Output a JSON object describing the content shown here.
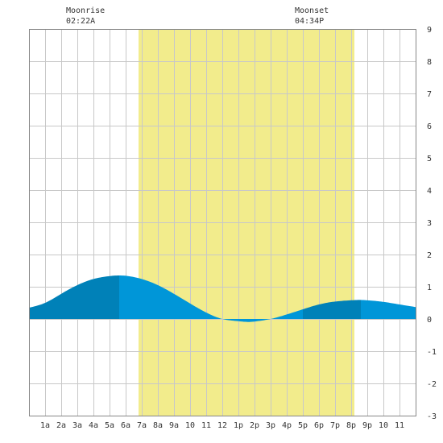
{
  "moon": {
    "rise_label": "Moonrise",
    "rise_time": "02:22A",
    "set_label": "Moonset",
    "set_time": "04:34P"
  },
  "chart_data": {
    "type": "area",
    "x_unit": "hours after midnight",
    "xlim": [
      -1,
      23
    ],
    "ylim": [
      -3,
      9
    ],
    "x_ticks": [
      {
        "x": 0,
        "label": "1a"
      },
      {
        "x": 1,
        "label": "2a"
      },
      {
        "x": 2,
        "label": "3a"
      },
      {
        "x": 3,
        "label": "4a"
      },
      {
        "x": 4,
        "label": "5a"
      },
      {
        "x": 5,
        "label": "6a"
      },
      {
        "x": 6,
        "label": "7a"
      },
      {
        "x": 7,
        "label": "8a"
      },
      {
        "x": 8,
        "label": "9a"
      },
      {
        "x": 9,
        "label": "10"
      },
      {
        "x": 10,
        "label": "11"
      },
      {
        "x": 11,
        "label": "12"
      },
      {
        "x": 12,
        "label": "1p"
      },
      {
        "x": 13,
        "label": "2p"
      },
      {
        "x": 14,
        "label": "3p"
      },
      {
        "x": 15,
        "label": "4p"
      },
      {
        "x": 16,
        "label": "5p"
      },
      {
        "x": 17,
        "label": "6p"
      },
      {
        "x": 18,
        "label": "7p"
      },
      {
        "x": 19,
        "label": "8p"
      },
      {
        "x": 20,
        "label": "9p"
      },
      {
        "x": 21,
        "label": "10"
      },
      {
        "x": 22,
        "label": "11"
      }
    ],
    "y_ticks": [
      {
        "y": 9,
        "label": "9"
      },
      {
        "y": 8,
        "label": "8"
      },
      {
        "y": 7,
        "label": "7"
      },
      {
        "y": 6,
        "label": "6"
      },
      {
        "y": 5,
        "label": "5"
      },
      {
        "y": 4,
        "label": "4"
      },
      {
        "y": 3,
        "label": "3"
      },
      {
        "y": 2,
        "label": "2"
      },
      {
        "y": 1,
        "label": "1"
      },
      {
        "y": 0,
        "label": "0"
      },
      {
        "y": -1,
        "label": "-1"
      },
      {
        "y": -2,
        "label": "-2"
      },
      {
        "y": -3,
        "label": "-3"
      }
    ],
    "daylight": {
      "start": 5.8,
      "end": 19.2
    },
    "tide": {
      "x": [
        -1,
        0,
        1,
        2,
        3,
        4,
        4.6,
        5,
        6,
        7,
        8,
        9,
        10,
        11,
        12,
        12.8,
        13,
        14,
        15,
        16,
        17,
        18,
        19,
        19.6,
        20,
        21,
        22,
        23
      ],
      "y": [
        0.35,
        0.5,
        0.78,
        1.05,
        1.24,
        1.33,
        1.35,
        1.34,
        1.24,
        1.05,
        0.78,
        0.48,
        0.2,
        0.0,
        -0.07,
        -0.09,
        -0.08,
        0.0,
        0.14,
        0.3,
        0.45,
        0.54,
        0.58,
        0.59,
        0.58,
        0.53,
        0.45,
        0.37
      ]
    },
    "shade_bands": [
      {
        "start": -1,
        "end": 4.6,
        "tone": "dark"
      },
      {
        "start": 4.6,
        "end": 16.0,
        "tone": "light"
      },
      {
        "start": 16.0,
        "end": 19.6,
        "tone": "dark"
      },
      {
        "start": 19.6,
        "end": 23,
        "tone": "light"
      }
    ],
    "colors": {
      "background": "#ffffff",
      "daylight": "#f2ec8c",
      "tide_dark": "#0081b8",
      "tide_light": "#0096d8",
      "grid": "#c8c8c8",
      "border": "#888888",
      "text": "#333333"
    }
  }
}
